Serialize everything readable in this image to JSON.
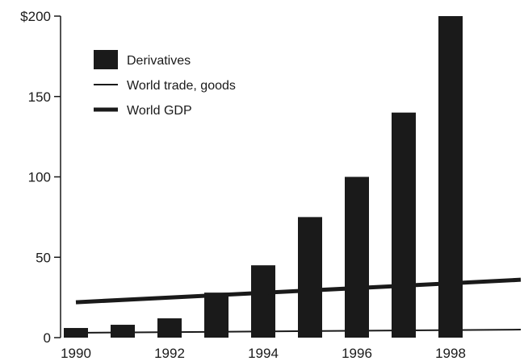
{
  "chart_data": {
    "type": "bar",
    "categories": [
      "1990",
      "1991",
      "1992",
      "1993",
      "1994",
      "1995",
      "1996",
      "1997",
      "1998"
    ],
    "series": [
      {
        "name": "Derivatives",
        "type": "bar",
        "color": "#1a1a1a",
        "values": [
          6,
          8,
          12,
          28,
          45,
          75,
          100,
          140,
          200
        ]
      },
      {
        "name": "World trade, goods",
        "type": "line",
        "color": "#1a1a1a",
        "x": [
          1990,
          1999.5
        ],
        "values": [
          3,
          5
        ]
      },
      {
        "name": "World GDP",
        "type": "line",
        "color": "#1a1a1a",
        "x": [
          1990,
          1999.5
        ],
        "values": [
          22,
          36
        ]
      }
    ],
    "y_ticks": [
      "$200",
      "150",
      "100",
      "50",
      "0"
    ],
    "y_tick_values": [
      200,
      150,
      100,
      50,
      0
    ],
    "x_ticks": [
      "1990",
      "1992",
      "1994",
      "1996",
      "1998"
    ],
    "x_tick_values": [
      1990,
      1992,
      1994,
      1996,
      1998
    ],
    "ylim": [
      0,
      200
    ],
    "xlim": [
      1989.6,
      1999.6
    ],
    "legend_position": "top-left",
    "grid": false,
    "title": "",
    "xlabel": "",
    "ylabel": ""
  }
}
